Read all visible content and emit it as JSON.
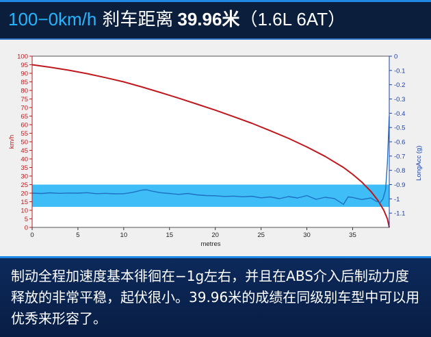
{
  "header": {
    "speed": "100−0km/h",
    "label": "刹车距离",
    "value": "39.96",
    "unit": "米",
    "spec": "（1.6L 6AT）"
  },
  "chart_data": {
    "type": "line",
    "xlabel": "metres",
    "ylabel_left": "km/h",
    "ylabel_right": "LongAcc (g)",
    "x_range": [
      0,
      39
    ],
    "x_ticks": [
      0,
      5,
      10,
      15,
      20,
      25,
      30,
      35
    ],
    "y_left_range": [
      0,
      100
    ],
    "y_left_ticks": [
      0,
      5,
      10,
      15,
      20,
      25,
      30,
      35,
      40,
      45,
      50,
      55,
      60,
      65,
      70,
      75,
      80,
      85,
      90,
      95,
      100
    ],
    "y_right_range": [
      0,
      -1.2
    ],
    "y_right_ticks": [
      "0",
      "-0.1",
      "-0.2",
      "-0.3",
      "-0.4",
      "-0.5",
      "-0.6",
      "-0.7",
      "-0.8",
      "-0.9",
      "-1",
      "-1.1"
    ],
    "grid": false,
    "highlight_band": {
      "y_from": 12,
      "y_to": 25,
      "color": "#29b6f6"
    },
    "series": [
      {
        "axis": "left",
        "color": "#c0171d",
        "x": [
          0,
          2,
          4,
          6,
          8,
          10,
          12,
          14,
          16,
          18,
          20,
          22,
          24,
          26,
          28,
          30,
          32,
          34,
          35,
          36,
          37,
          37.8,
          38.4,
          38.8,
          39
        ],
        "y": [
          95,
          93.5,
          91.8,
          89.8,
          87.5,
          85,
          82,
          78.8,
          75.5,
          72,
          68.5,
          64.7,
          60.8,
          56.5,
          52,
          47,
          41.5,
          35,
          31,
          26.5,
          21,
          15.5,
          10,
          5,
          0
        ]
      },
      {
        "axis": "left",
        "color": "#1f6fc2",
        "x": [
          0,
          1,
          2,
          3,
          4,
          5,
          6,
          7,
          8,
          9,
          10,
          11,
          12,
          12.5,
          13,
          14,
          15,
          16,
          17,
          18,
          19,
          20,
          21,
          22,
          23,
          24,
          25,
          26,
          27,
          28,
          29,
          30,
          31,
          32,
          33,
          34,
          34.5,
          35,
          36,
          37,
          37.5,
          38,
          38.3,
          38.6,
          38.8,
          39
        ],
        "y": [
          20,
          19.8,
          20.2,
          19.9,
          20.1,
          20,
          20.3,
          19.7,
          19.9,
          19.6,
          19.7,
          20.5,
          21.8,
          22,
          21.3,
          20.3,
          19.8,
          19.3,
          19.8,
          19,
          18.6,
          18.5,
          18.1,
          18.3,
          17.9,
          18.2,
          17.3,
          17.8,
          16.8,
          18,
          17.2,
          18.6,
          16.4,
          17.6,
          16.9,
          13.5,
          17.8,
          17.5,
          16.3,
          17.2,
          15.5,
          14.5,
          16.5,
          22,
          38,
          65
        ]
      }
    ]
  },
  "caption": "制动全程加速度基本徘徊在−1g左右，并且在ABS介入后制动力度释放的非常平稳，起伏很小。39.96米的成绩在同级别车型中可以用优秀来形容了。"
}
